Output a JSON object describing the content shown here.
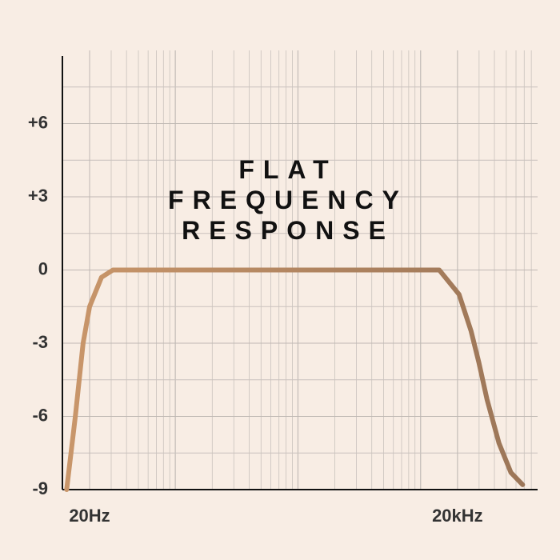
{
  "chart_data": {
    "type": "line",
    "title": "FLAT FREQUENCY RESPONSE",
    "x": [
      13,
      15.3,
      17.7,
      20,
      25,
      31,
      1000,
      14200,
      20600,
      25800,
      29900,
      34800,
      43600,
      54500,
      68000
    ],
    "values": [
      -9,
      -6,
      -3,
      -1.5,
      -0.3,
      0,
      0,
      0,
      -1,
      -2.5,
      -3.8,
      -5.3,
      -7.1,
      -8.3,
      -8.8
    ],
    "color": "#b98a62",
    "xlim": [
      12,
      90000
    ],
    "xscale": "log",
    "xticks": [
      {
        "value": 20,
        "label": "20Hz"
      },
      {
        "value": 20000,
        "label": "20kHz"
      }
    ],
    "ylim": [
      -9,
      9
    ],
    "yticks": [
      {
        "value": 6,
        "label": "+6"
      },
      {
        "value": 3,
        "label": "+3"
      },
      0,
      -3,
      -6,
      -9
    ],
    "grid": true
  }
}
